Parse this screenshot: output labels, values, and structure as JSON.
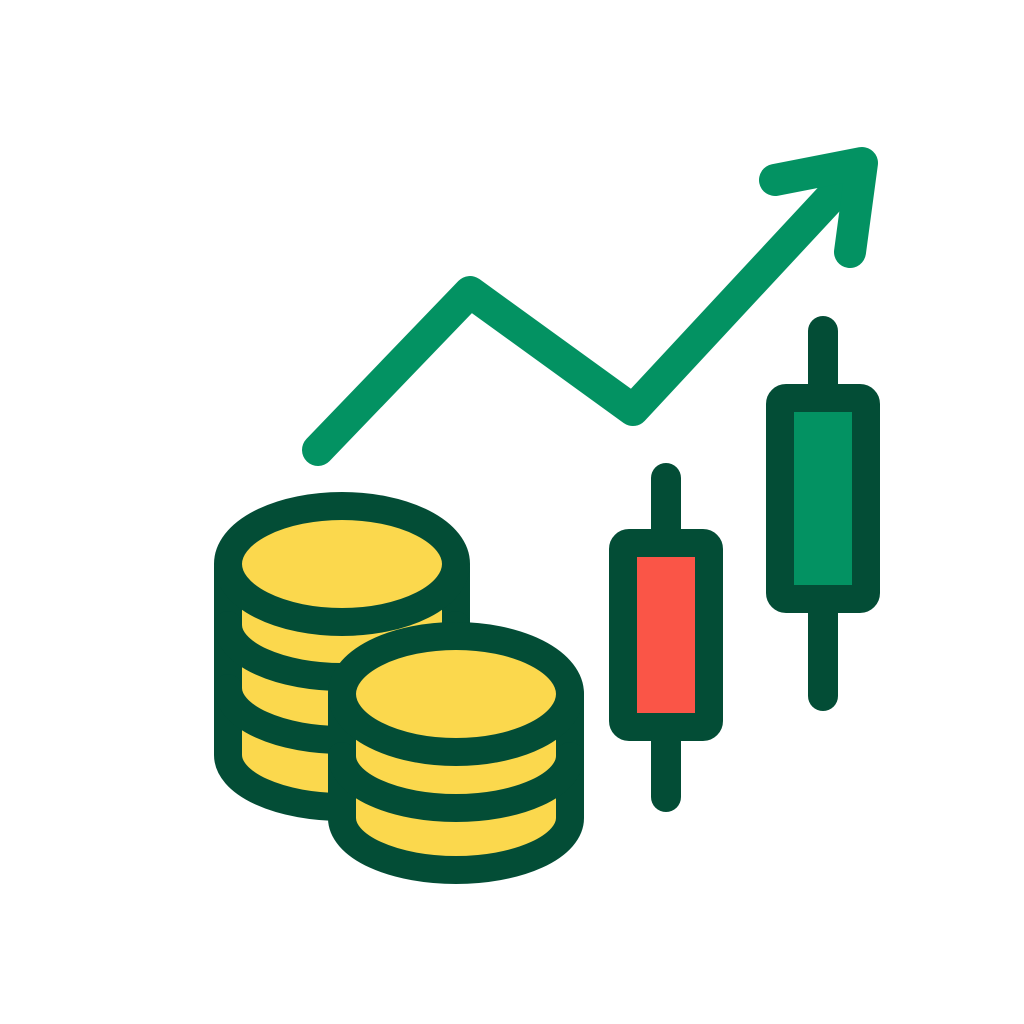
{
  "icon": {
    "name": "finance-growth-icon",
    "colors": {
      "background": "#ffffff",
      "outline": "#034d36",
      "arrow": "#039262",
      "coin_fill": "#fbd84d",
      "bearish_candle": "#fa5547",
      "bullish_candle": "#039262"
    },
    "elements": [
      {
        "name": "trend-arrow-icon",
        "meaning": "rising trend"
      },
      {
        "name": "coin-stack-icon",
        "count": 2
      },
      {
        "name": "candlestick-icon",
        "kind": "bearish"
      },
      {
        "name": "candlestick-icon",
        "kind": "bullish"
      }
    ]
  }
}
